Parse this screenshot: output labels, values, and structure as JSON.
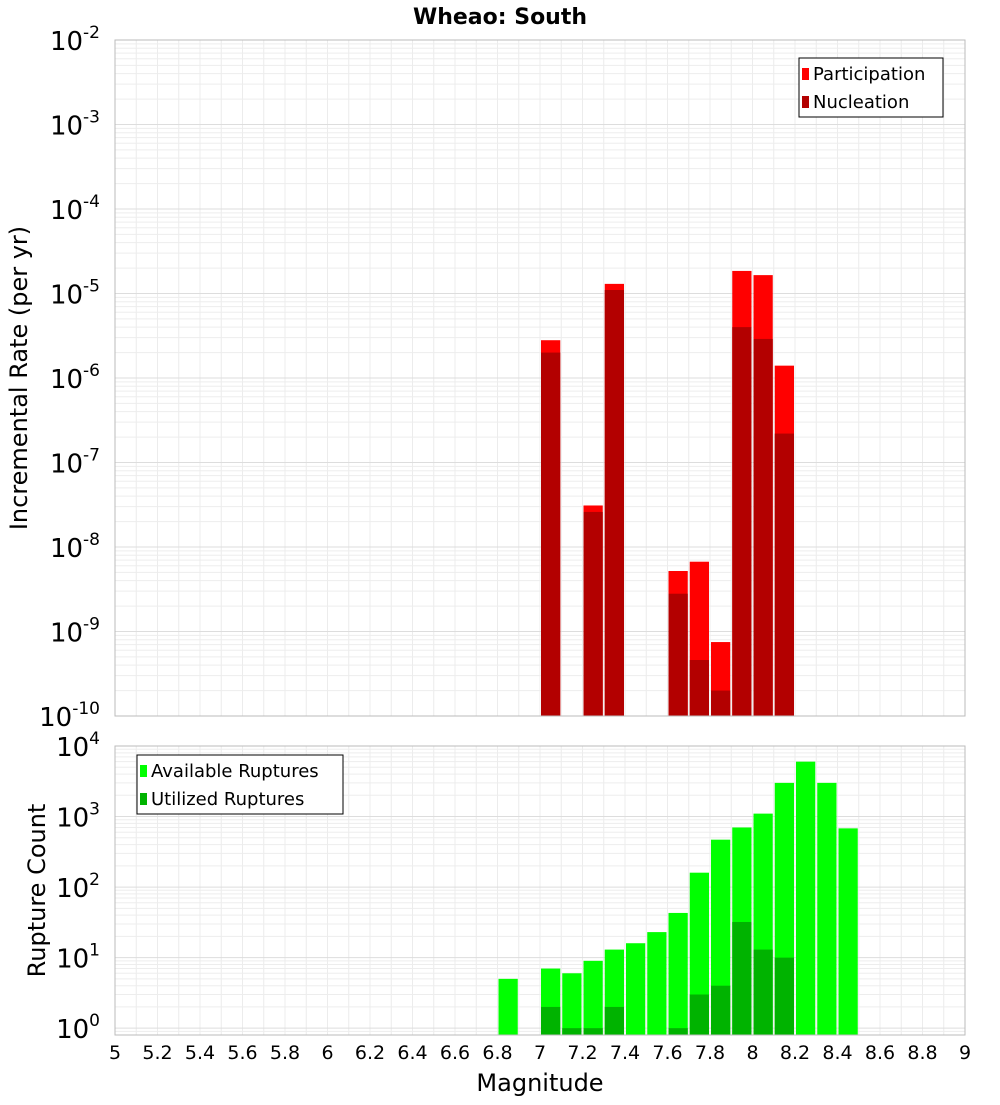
{
  "chart_data": [
    {
      "type": "bar",
      "title": "Wheao: South",
      "ylabel": "Incremental Rate (per yr)",
      "xlabel": "",
      "xlim": [
        5,
        9
      ],
      "ylim": [
        1e-10,
        0.01
      ],
      "yscale": "log",
      "grid": true,
      "legend_position": "top-right",
      "bin_width": 0.1,
      "y_tick_exponents": [
        -10,
        -9,
        -8,
        -7,
        -6,
        -5,
        -4,
        -3,
        -2
      ],
      "series": [
        {
          "name": "Participation",
          "color": "#ff0000",
          "x": [
            7.05,
            7.25,
            7.35,
            7.65,
            7.75,
            7.85,
            7.95,
            8.05,
            8.15
          ],
          "values": [
            2.8e-06,
            3.1e-08,
            1.3e-05,
            5.2e-09,
            6.7e-09,
            7.5e-10,
            1.85e-05,
            1.65e-05,
            1.4e-06
          ]
        },
        {
          "name": "Nucleation",
          "color": "#b30000",
          "x": [
            7.05,
            7.25,
            7.35,
            7.65,
            7.75,
            7.85,
            7.95,
            8.05,
            8.15
          ],
          "values": [
            2e-06,
            2.6e-08,
            1.1e-05,
            2.8e-09,
            4.6e-10,
            2e-10,
            4e-06,
            2.9e-06,
            2.2e-07
          ]
        }
      ]
    },
    {
      "type": "bar",
      "title": "",
      "ylabel": "Rupture Count",
      "xlabel": "Magnitude",
      "xlim": [
        5,
        9
      ],
      "ylim": [
        0.8,
        10000
      ],
      "yscale": "log",
      "grid": true,
      "legend_position": "top-left",
      "bin_width": 0.1,
      "y_tick_exponents": [
        0,
        1,
        2,
        3,
        4
      ],
      "x_tick_labels": [
        "5",
        "5.2",
        "5.4",
        "5.6",
        "5.8",
        "6",
        "6.2",
        "6.4",
        "6.6",
        "6.8",
        "7",
        "7.2",
        "7.4",
        "7.6",
        "7.8",
        "8",
        "8.2",
        "8.4",
        "8.6",
        "8.8",
        "9"
      ],
      "series": [
        {
          "name": "Available Ruptures",
          "color": "#00ff00",
          "x": [
            6.85,
            7.05,
            7.15,
            7.25,
            7.35,
            7.45,
            7.55,
            7.65,
            7.75,
            7.85,
            7.95,
            8.05,
            8.15,
            8.25,
            8.35,
            8.45
          ],
          "values": [
            5,
            7,
            6,
            9,
            13,
            16,
            23,
            43,
            160,
            470,
            700,
            1100,
            3000,
            6000,
            3000,
            680
          ]
        },
        {
          "name": "Utilized Ruptures",
          "color": "#00b300",
          "x": [
            7.05,
            7.15,
            7.25,
            7.35,
            7.65,
            7.75,
            7.85,
            7.95,
            8.05,
            8.15
          ],
          "values": [
            2,
            1,
            1,
            2,
            1,
            3,
            4,
            32,
            13,
            10
          ]
        }
      ]
    }
  ]
}
